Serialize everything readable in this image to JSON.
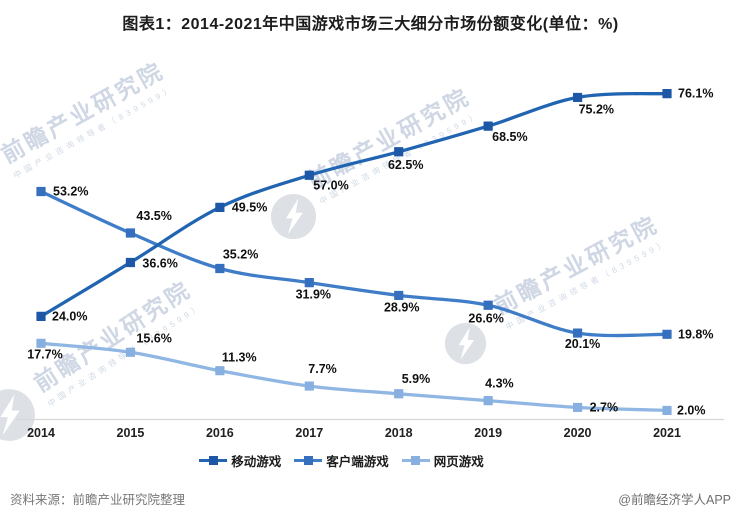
{
  "title": "图表1：2014-2021年中国游戏市场三大细分市场份额变化(单位：%)",
  "watermark": {
    "brand": "前瞻产业研究院",
    "sub": "中国产业咨询领导者（839599）"
  },
  "footer": {
    "source": "资料来源：前瞻产业研究院整理",
    "credit": "@前瞻经济学人APP"
  },
  "colors": {
    "axis_line": "#d6d6d6",
    "data_label": "#101010",
    "watermark_gray": "#d7dbe0"
  },
  "chart_data": {
    "type": "line",
    "x": [
      "2014",
      "2015",
      "2016",
      "2017",
      "2018",
      "2019",
      "2020",
      "2021"
    ],
    "unit": "%",
    "ylim": [
      0,
      84
    ],
    "grid": false,
    "legend_position": "bottom",
    "series": [
      {
        "name": "移动游戏",
        "color": "#2164b2",
        "marker_color": "#1d57a6",
        "values": [
          24.0,
          36.6,
          49.5,
          57.0,
          62.5,
          68.5,
          75.2,
          76.1
        ]
      },
      {
        "name": "客户端游戏",
        "color": "#3f7dc8",
        "marker_color": "#366fbd",
        "values": [
          53.2,
          43.5,
          35.2,
          31.9,
          28.9,
          26.6,
          20.1,
          19.8
        ]
      },
      {
        "name": "网页游戏",
        "color": "#90b6e3",
        "marker_color": "#87afdf",
        "values": [
          17.7,
          15.6,
          11.3,
          7.7,
          5.9,
          4.3,
          2.7,
          2.0
        ]
      }
    ]
  }
}
